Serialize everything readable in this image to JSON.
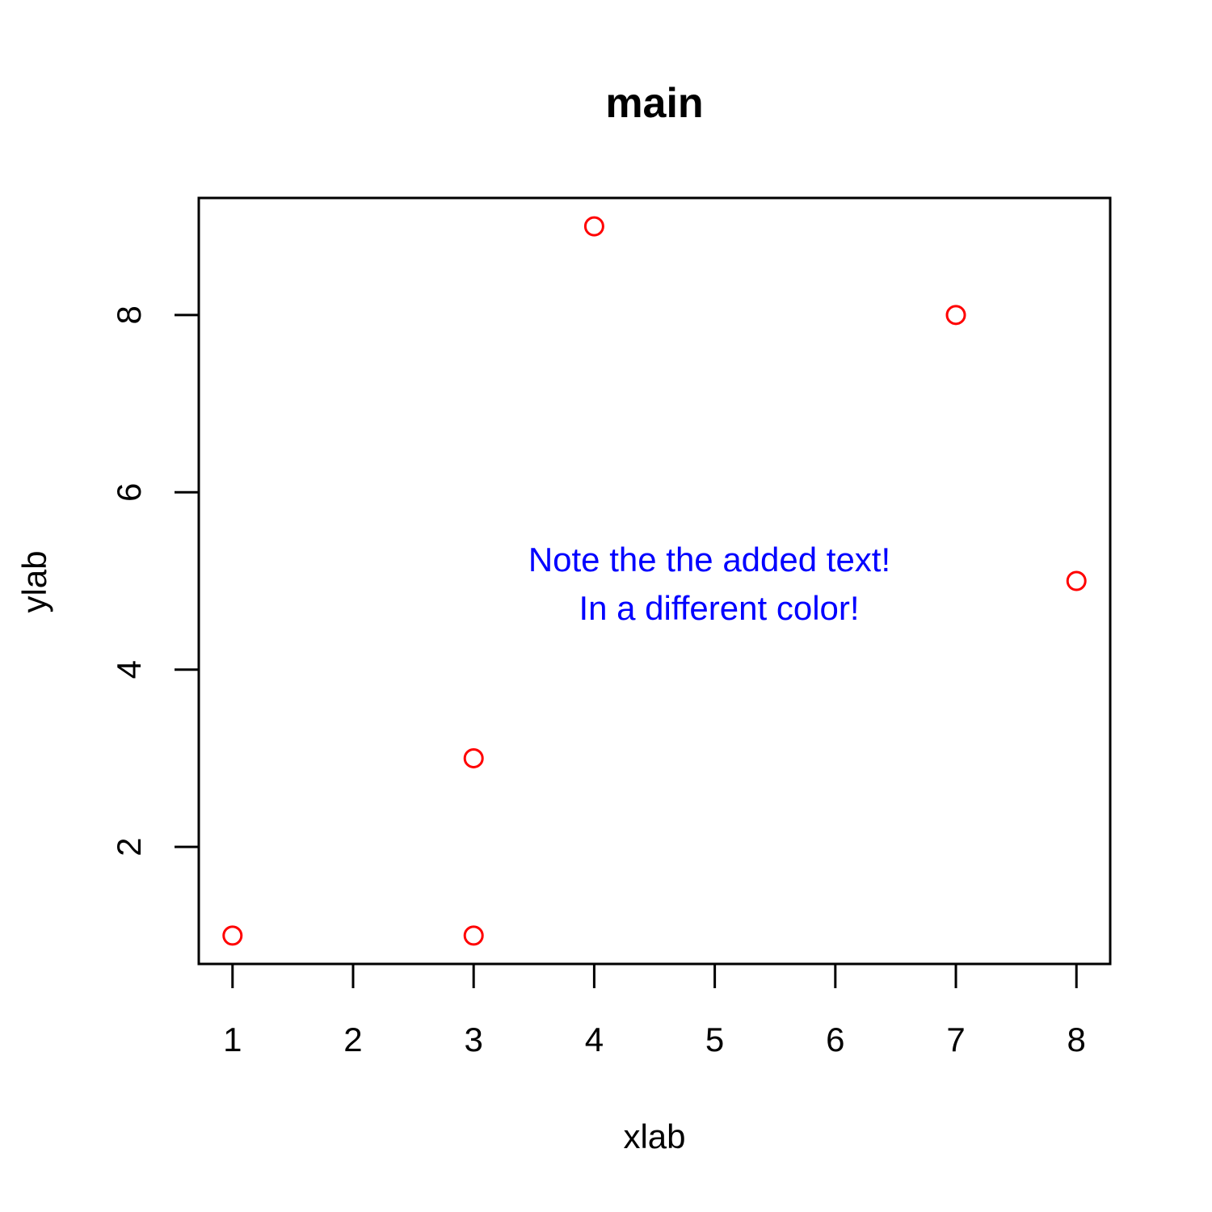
{
  "chart_data": {
    "type": "scatter",
    "title": "main",
    "xlabel": "xlab",
    "ylabel": "ylab",
    "x": [
      1,
      3,
      3,
      4,
      7,
      8
    ],
    "y": [
      1,
      1,
      3,
      9,
      8,
      5
    ],
    "xticks": [
      "1",
      "2",
      "3",
      "4",
      "5",
      "6",
      "7",
      "8"
    ],
    "yticks": [
      "2",
      "4",
      "6",
      "8"
    ],
    "xlim": [
      0.72,
      8.28
    ],
    "ylim": [
      0.68,
      9.32
    ],
    "marker": "open-circle",
    "point_color": "#ff0000",
    "grid": false,
    "annotation": {
      "lines": [
        "Note the the added text!",
        "In a different color!"
      ],
      "color": "#0000ff",
      "x": 5,
      "y": 5
    }
  }
}
